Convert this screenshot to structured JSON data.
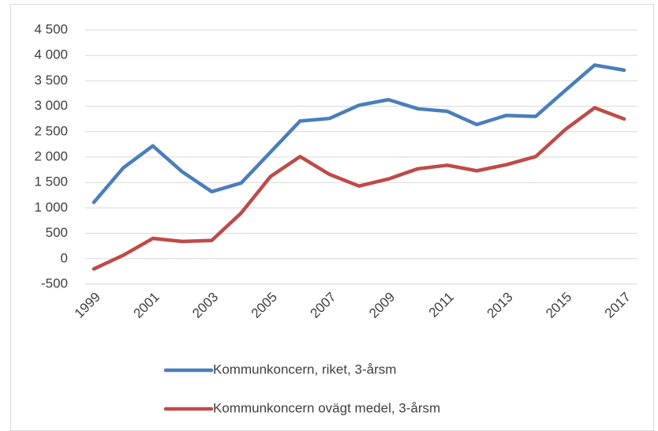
{
  "chart_data": {
    "type": "line",
    "x": [
      1999,
      2000,
      2001,
      2002,
      2003,
      2004,
      2005,
      2006,
      2007,
      2008,
      2009,
      2010,
      2011,
      2012,
      2013,
      2014,
      2015,
      2016,
      2017
    ],
    "xlim": [
      1999,
      2017
    ],
    "xticks": [
      1999,
      2001,
      2003,
      2005,
      2007,
      2009,
      2011,
      2013,
      2015,
      2017
    ],
    "ylim": [
      -500,
      4500
    ],
    "yticks": [
      -500,
      0,
      500,
      {
        "value": 1000,
        "label": "1 000"
      },
      {
        "value": 1500,
        "label": "1 500"
      },
      {
        "value": 2000,
        "label": "2 000"
      },
      {
        "value": 2500,
        "label": "2 500"
      },
      {
        "value": 3000,
        "label": "3 000"
      },
      {
        "value": 3500,
        "label": "3 500"
      },
      {
        "value": 4000,
        "label": "4 000"
      },
      {
        "value": 4500,
        "label": "4 500"
      }
    ],
    "grid": true,
    "legend": "bottom",
    "series": [
      {
        "name": "Kommunkoncern, riket, 3-årsm",
        "color": "#4a7ebb",
        "values": [
          1110,
          1790,
          2220,
          1710,
          1320,
          1490,
          2100,
          2710,
          2760,
          3020,
          3130,
          2950,
          2900,
          2640,
          2820,
          2800,
          3310,
          3810,
          3710
        ]
      },
      {
        "name": "Kommunkoncern ovägt medel, 3-årsm",
        "color": "#be4b48",
        "values": [
          -200,
          70,
          400,
          340,
          360,
          900,
          1620,
          2010,
          1660,
          1430,
          1570,
          1770,
          1840,
          1730,
          1850,
          2010,
          2540,
          2970,
          2750
        ]
      }
    ]
  }
}
